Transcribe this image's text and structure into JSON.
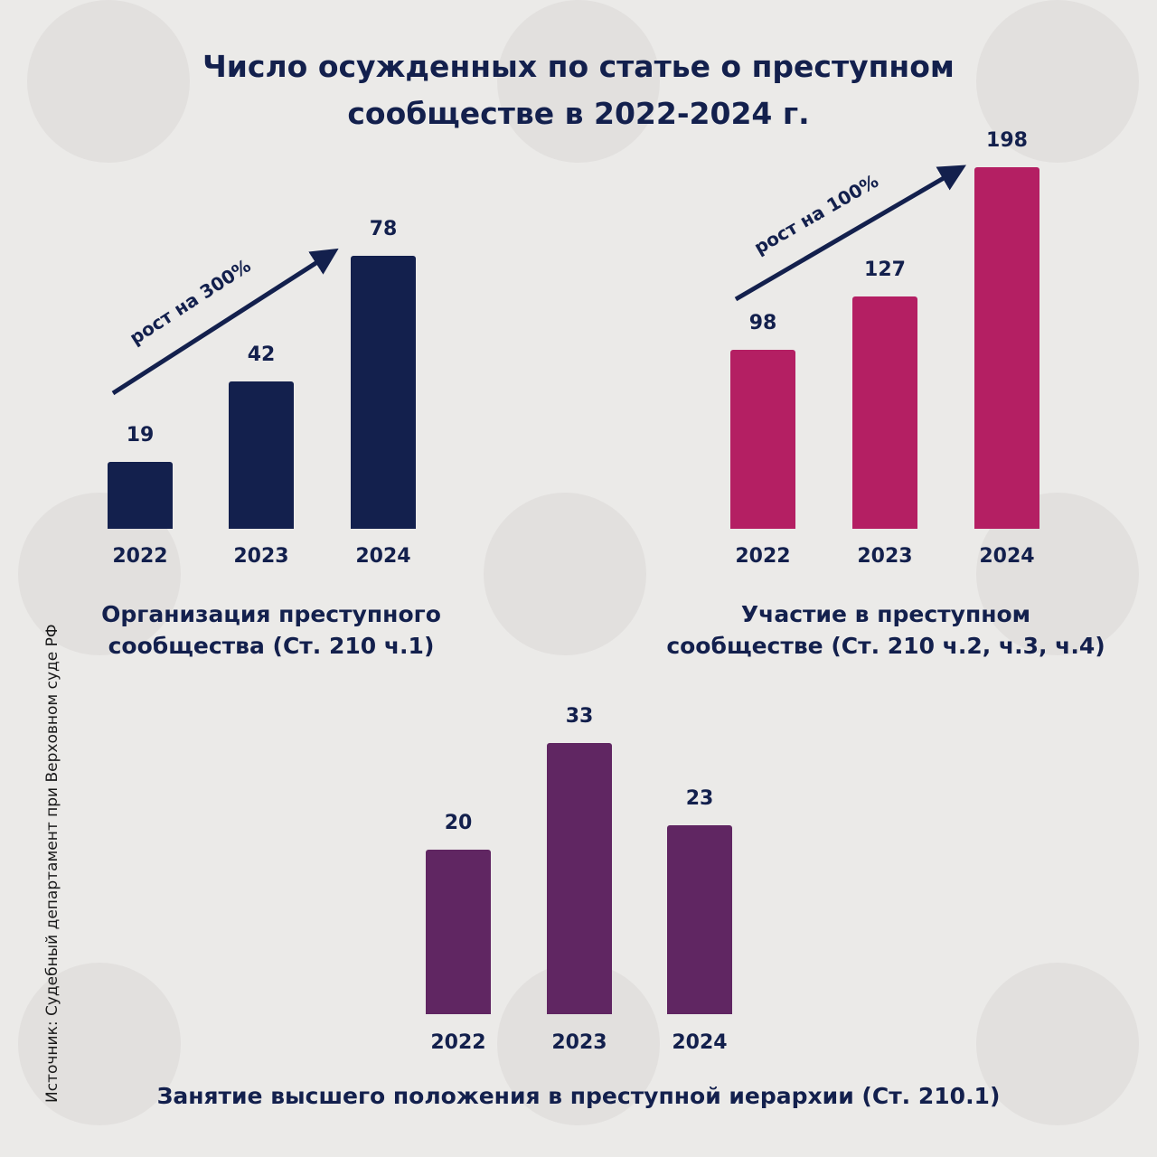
{
  "title_line1": "Число осужденных по статье о преступном",
  "title_line2": "сообществе в 2022-2024 г.",
  "source": "Источник: Судебный департамент при Верховном суде РФ",
  "chart_data": [
    {
      "type": "bar",
      "categories": [
        "2022",
        "2023",
        "2024"
      ],
      "values": [
        19,
        42,
        78
      ],
      "title_line1": "Организация преступного",
      "title_line2": "сообщества (Ст. 210 ч.1)",
      "annotation": "рост на 300%",
      "color": "#13204d"
    },
    {
      "type": "bar",
      "categories": [
        "2022",
        "2023",
        "2024"
      ],
      "values": [
        98,
        127,
        198
      ],
      "title_line1": "Участие в преступном",
      "title_line2": "сообществе (Ст. 210 ч.2, ч.3, ч.4)",
      "annotation": "рост на 100%",
      "color": "#b41f63"
    },
    {
      "type": "bar",
      "categories": [
        "2022",
        "2023",
        "2024"
      ],
      "values": [
        20,
        33,
        23
      ],
      "title_line1": "Занятие высшего положения в преступной иерархии (Ст. 210.1)",
      "color": "#602662"
    }
  ]
}
